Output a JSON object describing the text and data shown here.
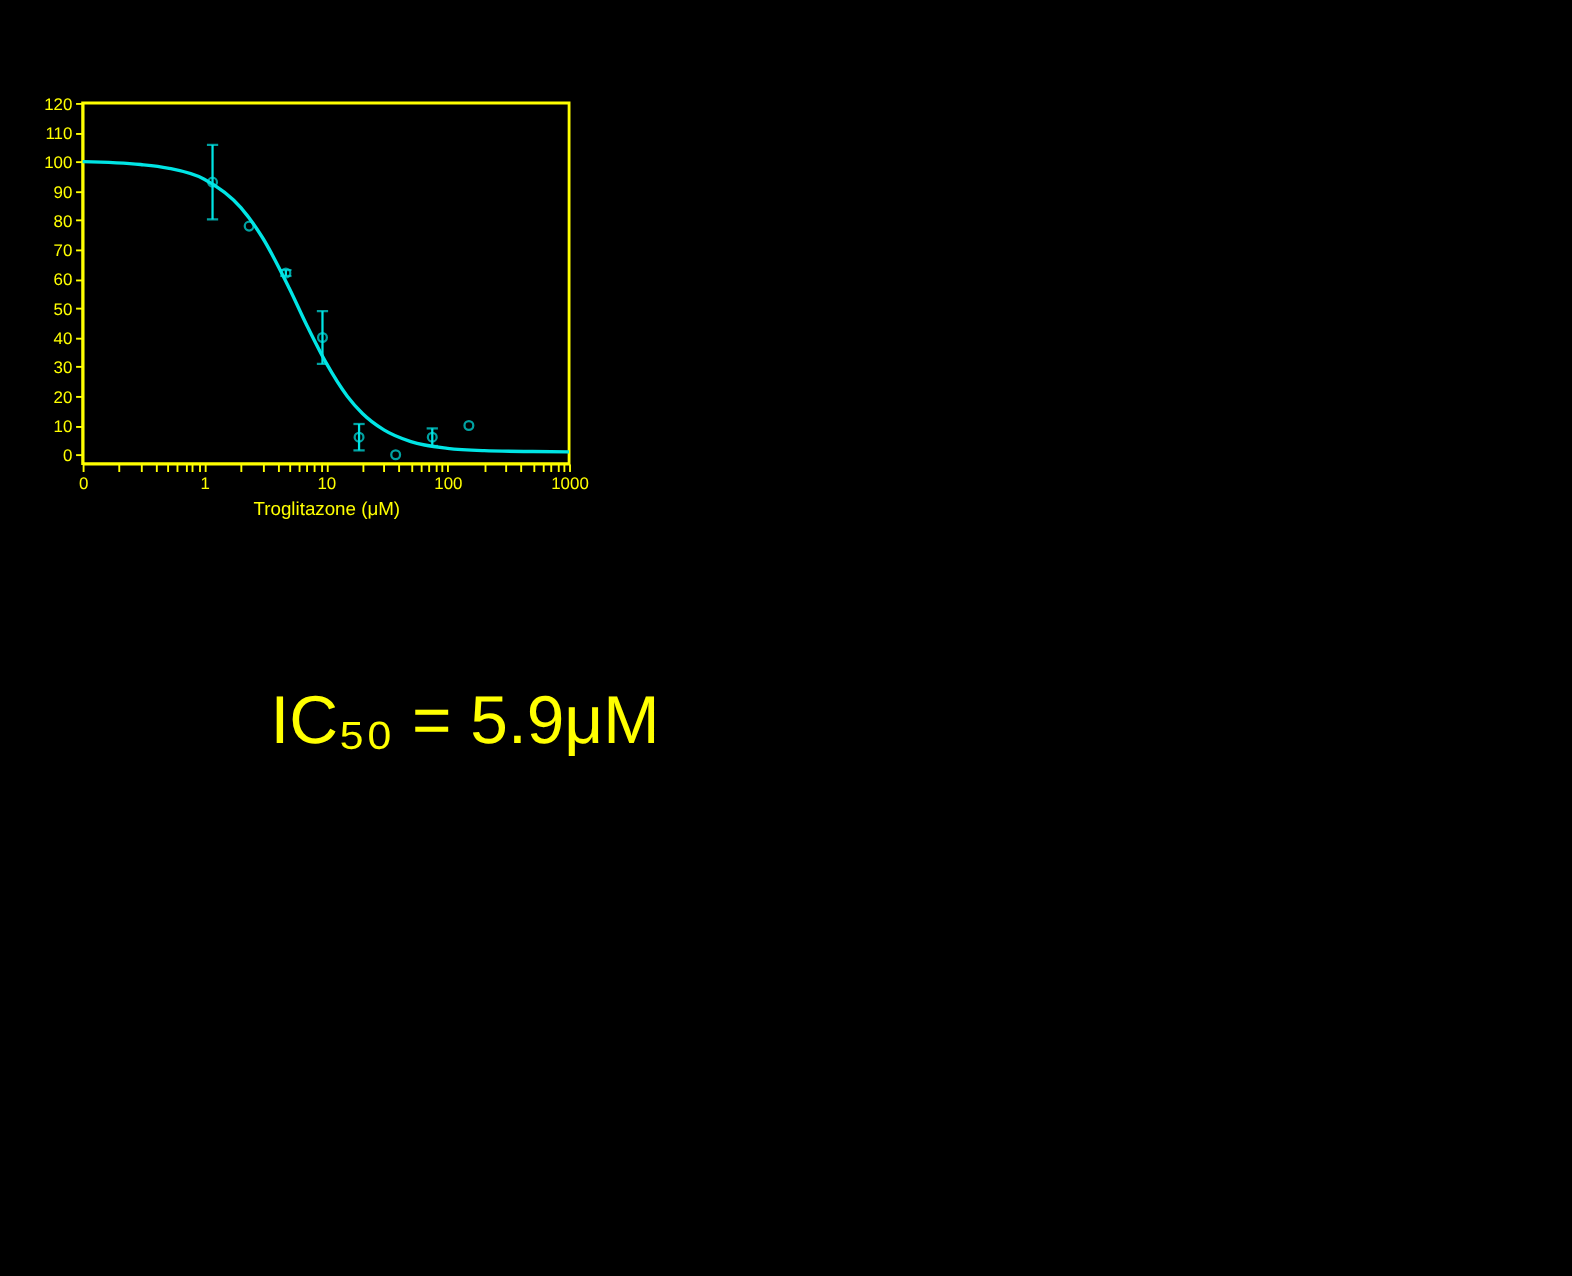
{
  "chart_data": {
    "type": "scatter",
    "xlabel": "Troglitazone (μM)",
    "log": "x",
    "grid": false,
    "xlim": [
      0.1,
      1000
    ],
    "xticks": [
      {
        "value": 0.1,
        "label": "0"
      },
      {
        "value": 0.2,
        "label": null
      },
      {
        "value": 0.3,
        "label": null
      },
      {
        "value": 0.4,
        "label": null
      },
      {
        "value": 0.5,
        "label": null
      },
      {
        "value": 0.6,
        "label": null
      },
      {
        "value": 0.7,
        "label": null
      },
      {
        "value": 0.8,
        "label": null
      },
      {
        "value": 0.9,
        "label": null
      },
      1,
      {
        "value": 2,
        "label": null
      },
      {
        "value": 3,
        "label": null
      },
      {
        "value": 4,
        "label": null
      },
      {
        "value": 5,
        "label": null
      },
      {
        "value": 6,
        "label": null
      },
      {
        "value": 7,
        "label": null
      },
      {
        "value": 8,
        "label": null
      },
      {
        "value": 9,
        "label": null
      },
      10,
      {
        "value": 20,
        "label": null
      },
      {
        "value": 30,
        "label": null
      },
      {
        "value": 40,
        "label": null
      },
      {
        "value": 50,
        "label": null
      },
      {
        "value": 60,
        "label": null
      },
      {
        "value": 70,
        "label": null
      },
      {
        "value": 80,
        "label": null
      },
      {
        "value": 90,
        "label": null
      },
      100,
      {
        "value": 200,
        "label": null
      },
      {
        "value": 300,
        "label": null
      },
      {
        "value": 400,
        "label": null
      },
      {
        "value": 500,
        "label": null
      },
      {
        "value": 600,
        "label": null
      },
      {
        "value": 700,
        "label": null
      },
      {
        "value": 800,
        "label": null
      },
      {
        "value": 900,
        "label": null
      },
      1000
    ],
    "ylim": [
      -3,
      120
    ],
    "yticks": [
      0,
      10,
      20,
      30,
      40,
      50,
      60,
      70,
      80,
      90,
      100,
      110,
      120
    ],
    "series": [
      {
        "marker": "circle",
        "color": "#00e5e5",
        "x": [
          1.17,
          2.34,
          4.69,
          9.38,
          18.75,
          37.5,
          75,
          150
        ],
        "values": [
          93,
          78,
          62,
          40,
          6,
          0,
          6,
          10
        ],
        "errors": [
          12.7,
          null,
          1,
          9,
          4.5,
          null,
          3,
          null
        ]
      },
      {
        "type": "line",
        "color": "#00e5e5",
        "x": [
          0.1,
          0.3,
          0.5,
          1,
          2,
          3,
          5,
          7,
          10,
          15,
          20,
          30,
          50,
          100,
          200,
          500,
          1000
        ],
        "values": [
          100,
          99,
          97.8,
          94,
          84.3,
          74.2,
          56.8,
          44,
          31.5,
          20,
          14.1,
          8.5,
          4.5,
          2.2,
          1.4,
          1.1,
          1
        ]
      }
    ],
    "annotations": [
      "IC₅₀ =  5.9μM"
    ]
  }
}
